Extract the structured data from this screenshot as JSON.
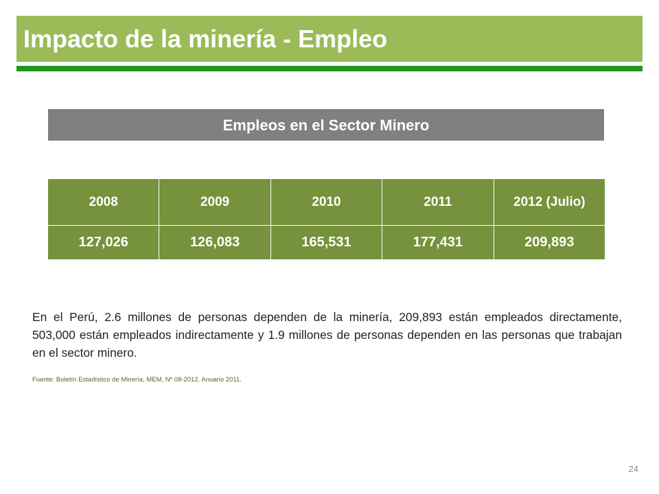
{
  "slide": {
    "title": "Impacto de la minería - Empleo",
    "colors": {
      "title_bar": "#9bbb59",
      "title_underline": "#1f9420",
      "table_header_bar": "#808080",
      "table_body": "#76923c"
    }
  },
  "table": {
    "title": "Empleos en el Sector Minero",
    "columns": [
      "2008",
      "2009",
      "2010",
      "2011",
      "2012 (Julio)"
    ],
    "values": [
      "127,026",
      "126,083",
      "165,531",
      "177,431",
      "209,893"
    ]
  },
  "body": {
    "paragraph": "En el Perú, 2.6 millones de personas dependen de la minería, 209,893 están empleados directamente, 503,000 están empleados indirectamente y 1.9 millones de personas dependen en las personas que trabajan en el sector minero.",
    "source": "Fuente: Boletín Estadístico de Minería, MEM, Nº 08-2012. Anuario 2011."
  },
  "footer": {
    "page_number": "24"
  }
}
